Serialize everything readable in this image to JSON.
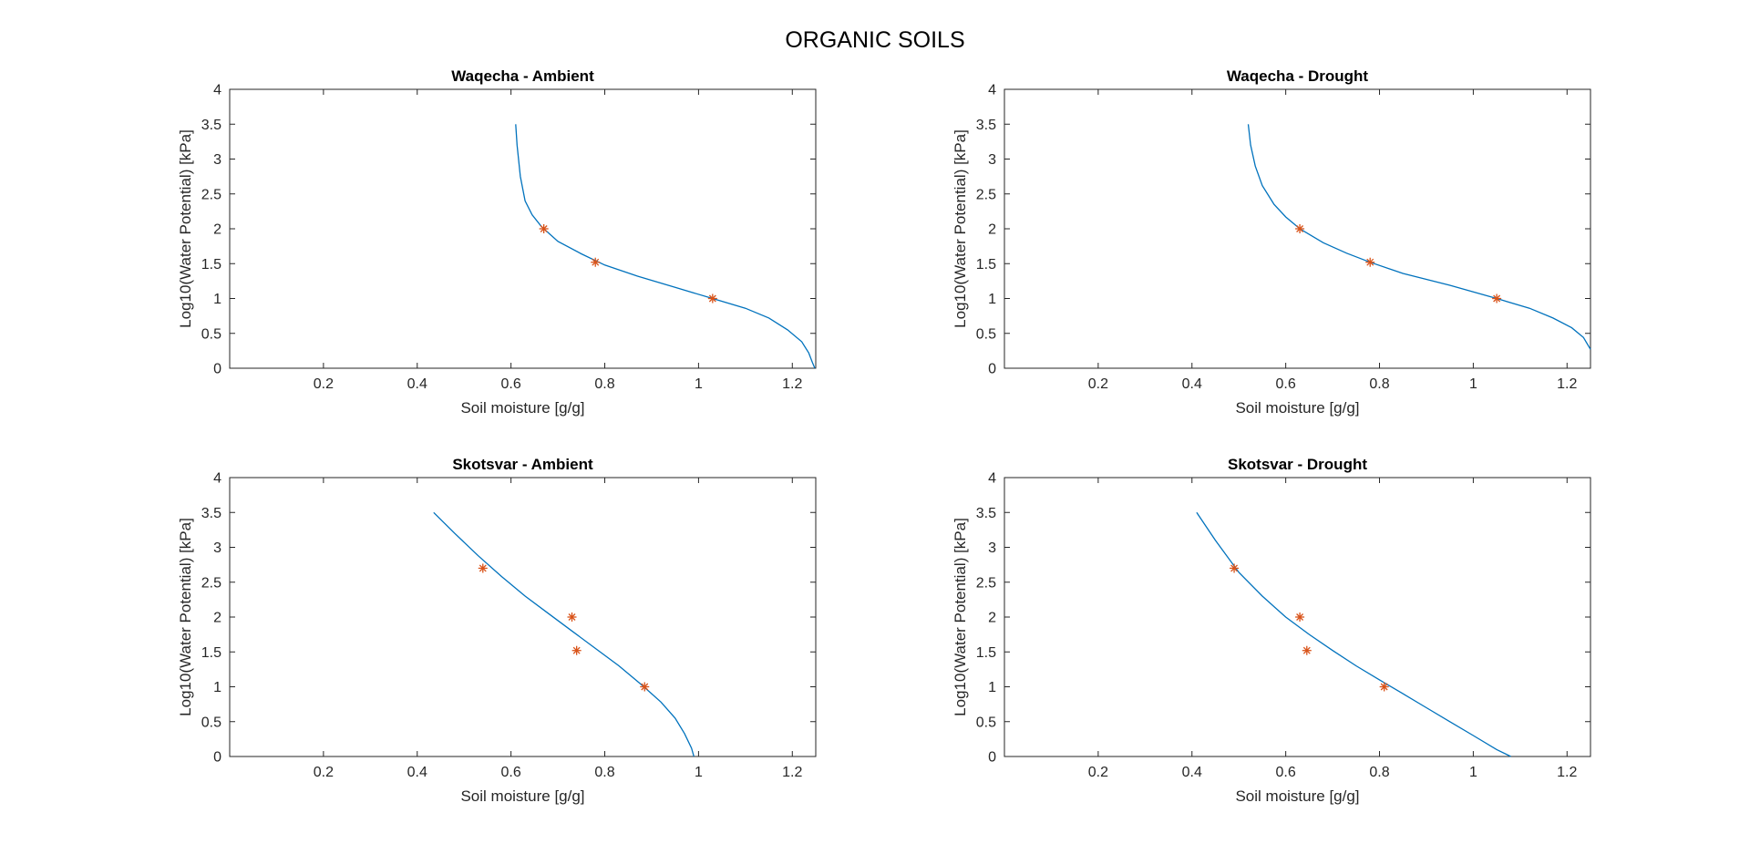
{
  "figure": {
    "title": "ORGANIC SOILS"
  },
  "colors": {
    "fit_line": "#0072BD",
    "observed_marker": "#D95319",
    "axis": "#262626"
  },
  "chart_data": [
    {
      "type": "line",
      "title": "Waqecha - Ambient",
      "xlabel": "Soil moisture [g/g]",
      "ylabel": "Log10(Water Potential) [kPa]",
      "xlim": [
        0,
        1.25
      ],
      "ylim": [
        0,
        4
      ],
      "xticks": [
        0.2,
        0.4,
        0.6,
        0.8,
        1,
        1.2
      ],
      "yticks": [
        0,
        0.5,
        1,
        1.5,
        2,
        2.5,
        3,
        3.5,
        4
      ],
      "grid": false,
      "series": [
        {
          "kind": "curve",
          "x": [
            0.61,
            0.613,
            0.62,
            0.63,
            0.645,
            0.665,
            0.7,
            0.75,
            0.8,
            0.87,
            0.95,
            1.03,
            1.1,
            1.15,
            1.19,
            1.22,
            1.235,
            1.243,
            1.248
          ],
          "y": [
            3.5,
            3.2,
            2.75,
            2.4,
            2.2,
            2.03,
            1.82,
            1.64,
            1.48,
            1.32,
            1.16,
            1.0,
            0.86,
            0.72,
            0.55,
            0.38,
            0.22,
            0.08,
            0.0
          ]
        },
        {
          "kind": "observed",
          "x": [
            0.67,
            0.78,
            1.03
          ],
          "y": [
            2.0,
            1.52,
            1.0
          ]
        }
      ]
    },
    {
      "type": "line",
      "title": "Waqecha - Drought",
      "xlabel": "Soil moisture [g/g]",
      "ylabel": "Log10(Water Potential) [kPa]",
      "xlim": [
        0,
        1.25
      ],
      "ylim": [
        0,
        4
      ],
      "xticks": [
        0.2,
        0.4,
        0.6,
        0.8,
        1,
        1.2
      ],
      "yticks": [
        0,
        0.5,
        1,
        1.5,
        2,
        2.5,
        3,
        3.5,
        4
      ],
      "grid": false,
      "series": [
        {
          "kind": "curve",
          "x": [
            0.52,
            0.525,
            0.535,
            0.55,
            0.575,
            0.6,
            0.63,
            0.68,
            0.73,
            0.78,
            0.85,
            0.95,
            1.05,
            1.12,
            1.17,
            1.21,
            1.235,
            1.25
          ],
          "y": [
            3.5,
            3.2,
            2.9,
            2.62,
            2.35,
            2.17,
            2.0,
            1.8,
            1.65,
            1.52,
            1.36,
            1.19,
            1.0,
            0.86,
            0.72,
            0.58,
            0.44,
            0.27
          ]
        },
        {
          "kind": "observed",
          "x": [
            0.63,
            0.78,
            1.05
          ],
          "y": [
            2.0,
            1.52,
            1.0
          ]
        }
      ]
    },
    {
      "type": "line",
      "title": "Skotsvar - Ambient",
      "xlabel": "Soil moisture [g/g]",
      "ylabel": "Log10(Water Potential) [kPa]",
      "xlim": [
        0,
        1.25
      ],
      "ylim": [
        0,
        4
      ],
      "xticks": [
        0.2,
        0.4,
        0.6,
        0.8,
        1,
        1.2
      ],
      "yticks": [
        0,
        0.5,
        1,
        1.5,
        2,
        2.5,
        3,
        3.5,
        4
      ],
      "grid": false,
      "series": [
        {
          "kind": "curve",
          "x": [
            0.435,
            0.48,
            0.53,
            0.58,
            0.63,
            0.68,
            0.73,
            0.78,
            0.83,
            0.88,
            0.92,
            0.95,
            0.97,
            0.985,
            0.99
          ],
          "y": [
            3.5,
            3.2,
            2.88,
            2.58,
            2.3,
            2.05,
            1.8,
            1.55,
            1.3,
            1.02,
            0.78,
            0.55,
            0.33,
            0.12,
            0.0
          ]
        },
        {
          "kind": "observed",
          "x": [
            0.54,
            0.73,
            0.74,
            0.885
          ],
          "y": [
            2.7,
            2.0,
            1.52,
            1.0
          ]
        }
      ]
    },
    {
      "type": "line",
      "title": "Skotsvar - Drought",
      "xlabel": "Soil moisture [g/g]",
      "ylabel": "Log10(Water Potential) [kPa]",
      "xlim": [
        0,
        1.25
      ],
      "ylim": [
        0,
        4
      ],
      "xticks": [
        0.2,
        0.4,
        0.6,
        0.8,
        1,
        1.2
      ],
      "yticks": [
        0,
        0.5,
        1,
        1.5,
        2,
        2.5,
        3,
        3.5,
        4
      ],
      "grid": false,
      "series": [
        {
          "kind": "curve",
          "x": [
            0.41,
            0.45,
            0.5,
            0.55,
            0.6,
            0.65,
            0.7,
            0.75,
            0.8,
            0.85,
            0.9,
            0.95,
            1.0,
            1.05,
            1.08
          ],
          "y": [
            3.5,
            3.1,
            2.64,
            2.3,
            2.0,
            1.75,
            1.52,
            1.3,
            1.1,
            0.9,
            0.7,
            0.5,
            0.3,
            0.1,
            0.0
          ]
        },
        {
          "kind": "observed",
          "x": [
            0.49,
            0.63,
            0.645,
            0.81
          ],
          "y": [
            2.7,
            2.0,
            1.52,
            1.0
          ]
        }
      ]
    }
  ]
}
